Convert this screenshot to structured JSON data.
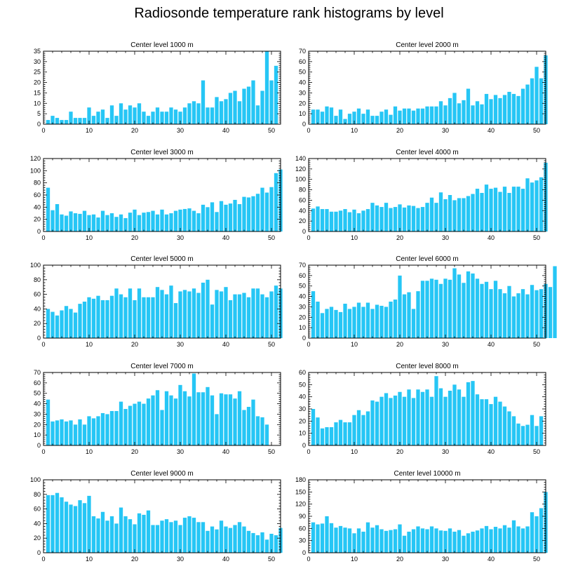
{
  "title": "Radiosonde temperature rank histograms by level",
  "colors": {
    "bar": "#26c6f5",
    "bar_edge": "#ffffff",
    "axis": "#000000"
  },
  "chart_data": [
    {
      "type": "bar",
      "title": "Center level 1000 m",
      "xlim": [
        0,
        52
      ],
      "ylim": [
        0,
        35
      ],
      "xticks": [
        0,
        10,
        20,
        30,
        40,
        50
      ],
      "yticks": [
        0,
        5,
        10,
        15,
        20,
        25,
        30,
        35
      ],
      "values": [
        2,
        4,
        3,
        2,
        2,
        6,
        3,
        3,
        3,
        8,
        4,
        6,
        7,
        3,
        9,
        4,
        10,
        7,
        9,
        8,
        10,
        6,
        4,
        6,
        8,
        6,
        6,
        8,
        7,
        6,
        8,
        10,
        11,
        10,
        21,
        8,
        8,
        13,
        11,
        12,
        15,
        16,
        11,
        17,
        18,
        21,
        9,
        16,
        35,
        21,
        28
      ]
    },
    {
      "type": "bar",
      "title": "Center level 2000 m",
      "xlim": [
        0,
        52
      ],
      "ylim": [
        0,
        70
      ],
      "xticks": [
        0,
        10,
        20,
        30,
        40,
        50
      ],
      "yticks": [
        0,
        10,
        20,
        30,
        40,
        50,
        60,
        70
      ],
      "values": [
        14,
        14,
        12,
        17,
        16,
        8,
        14,
        5,
        10,
        12,
        15,
        10,
        14,
        8,
        8,
        12,
        14,
        9,
        17,
        13,
        15,
        15,
        13,
        15,
        15,
        17,
        17,
        17,
        22,
        18,
        25,
        30,
        20,
        23,
        34,
        18,
        22,
        19,
        29,
        24,
        28,
        25,
        28,
        31,
        29,
        27,
        34,
        38,
        44,
        55,
        44,
        66
      ]
    },
    {
      "type": "bar",
      "title": "Center level 3000 m",
      "xlim": [
        0,
        52
      ],
      "ylim": [
        0,
        120
      ],
      "xticks": [
        0,
        10,
        20,
        30,
        40,
        50
      ],
      "yticks": [
        0,
        20,
        40,
        60,
        80,
        100,
        120
      ],
      "values": [
        72,
        35,
        45,
        28,
        26,
        33,
        30,
        29,
        34,
        27,
        28,
        23,
        34,
        27,
        30,
        24,
        28,
        22,
        31,
        36,
        27,
        31,
        32,
        34,
        28,
        36,
        28,
        30,
        34,
        36,
        37,
        38,
        34,
        30,
        44,
        40,
        48,
        32,
        50,
        44,
        46,
        52,
        45,
        57,
        56,
        58,
        62,
        72,
        64,
        73,
        96,
        102
      ]
    },
    {
      "type": "bar",
      "title": "Center level 4000 m",
      "xlim": [
        0,
        52
      ],
      "ylim": [
        0,
        140
      ],
      "xticks": [
        0,
        10,
        20,
        30,
        40,
        50
      ],
      "yticks": [
        0,
        20,
        40,
        60,
        80,
        100,
        120,
        140
      ],
      "values": [
        44,
        48,
        43,
        43,
        38,
        38,
        40,
        43,
        37,
        42,
        35,
        40,
        43,
        55,
        50,
        47,
        55,
        45,
        47,
        52,
        46,
        50,
        49,
        45,
        47,
        55,
        65,
        55,
        75,
        62,
        70,
        60,
        64,
        64,
        68,
        72,
        82,
        74,
        90,
        82,
        84,
        76,
        86,
        74,
        86,
        86,
        82,
        102,
        94,
        98,
        104,
        132
      ]
    },
    {
      "type": "bar",
      "title": "Center level 5000 m",
      "xlim": [
        0,
        52
      ],
      "ylim": [
        0,
        100
      ],
      "xticks": [
        0,
        10,
        20,
        30,
        40,
        50
      ],
      "yticks": [
        0,
        20,
        40,
        60,
        80,
        100
      ],
      "values": [
        40,
        36,
        31,
        38,
        44,
        40,
        35,
        47,
        50,
        56,
        54,
        58,
        52,
        52,
        58,
        68,
        60,
        56,
        68,
        52,
        68,
        56,
        56,
        56,
        70,
        66,
        60,
        72,
        48,
        64,
        66,
        64,
        68,
        62,
        76,
        80,
        46,
        66,
        64,
        70,
        52,
        60,
        60,
        62,
        56,
        68,
        68,
        60,
        56,
        64,
        72,
        68
      ]
    },
    {
      "type": "bar",
      "title": "Center level 6000 m",
      "xlim": [
        0,
        52
      ],
      "ylim": [
        0,
        70
      ],
      "xticks": [
        0,
        10,
        20,
        30,
        40,
        50
      ],
      "yticks": [
        0,
        10,
        20,
        30,
        40,
        50,
        60,
        70
      ],
      "values": [
        45,
        35,
        24,
        28,
        30,
        27,
        25,
        33,
        28,
        30,
        34,
        30,
        34,
        28,
        32,
        31,
        30,
        35,
        37,
        60,
        42,
        44,
        28,
        45,
        55,
        55,
        57,
        56,
        52,
        57,
        56,
        67,
        61,
        53,
        64,
        62,
        57,
        52,
        54,
        47,
        55,
        47,
        43,
        50,
        40,
        43,
        47,
        42,
        51,
        46,
        47,
        52,
        49,
        69
      ]
    },
    {
      "type": "bar",
      "title": "Center level 7000 m",
      "xlim": [
        0,
        52
      ],
      "ylim": [
        0,
        70
      ],
      "xticks": [
        0,
        10,
        20,
        30,
        40,
        50
      ],
      "yticks": [
        0,
        10,
        20,
        30,
        40,
        50,
        60,
        70
      ],
      "values": [
        44,
        23,
        24,
        25,
        23,
        24,
        20,
        25,
        20,
        28,
        26,
        28,
        31,
        30,
        33,
        33,
        42,
        35,
        38,
        40,
        42,
        40,
        45,
        48,
        53,
        34,
        52,
        48,
        45,
        58,
        52,
        47,
        69,
        51,
        51,
        56,
        48,
        30,
        50,
        49,
        49,
        45,
        52,
        34,
        37,
        44,
        28,
        27,
        20
      ]
    },
    {
      "type": "bar",
      "title": "Center level 8000 m",
      "xlim": [
        0,
        52
      ],
      "ylim": [
        0,
        60
      ],
      "xticks": [
        0,
        10,
        20,
        30,
        40,
        50
      ],
      "yticks": [
        0,
        10,
        20,
        30,
        40,
        50,
        60
      ],
      "values": [
        30,
        23,
        14,
        15,
        15,
        19,
        21,
        19,
        19,
        25,
        29,
        25,
        28,
        37,
        36,
        40,
        43,
        39,
        41,
        44,
        40,
        46,
        39,
        46,
        44,
        46,
        40,
        57,
        47,
        40,
        45,
        50,
        46,
        40,
        52,
        53,
        42,
        38,
        38,
        34,
        40,
        36,
        32,
        28,
        24,
        18,
        16,
        17,
        25,
        16,
        24
      ]
    },
    {
      "type": "bar",
      "title": "Center level 9000 m",
      "xlim": [
        0,
        52
      ],
      "ylim": [
        0,
        100
      ],
      "xticks": [
        0,
        10,
        20,
        30,
        40,
        50
      ],
      "yticks": [
        0,
        20,
        40,
        60,
        80,
        100
      ],
      "values": [
        79,
        79,
        82,
        76,
        70,
        66,
        64,
        72,
        68,
        78,
        50,
        47,
        56,
        44,
        50,
        40,
        62,
        50,
        46,
        39,
        54,
        52,
        58,
        38,
        38,
        44,
        46,
        42,
        44,
        38,
        48,
        50,
        48,
        42,
        42,
        30,
        36,
        32,
        44,
        36,
        34,
        38,
        42,
        36,
        30,
        27,
        24,
        28,
        18,
        26,
        24,
        34
      ]
    },
    {
      "type": "bar",
      "title": "Center level 10000 m",
      "xlim": [
        0,
        52
      ],
      "ylim": [
        0,
        180
      ],
      "xticks": [
        0,
        10,
        20,
        30,
        40,
        50
      ],
      "yticks": [
        0,
        30,
        60,
        90,
        120,
        150,
        180
      ],
      "values": [
        75,
        70,
        72,
        90,
        73,
        62,
        66,
        62,
        60,
        48,
        60,
        52,
        75,
        62,
        68,
        58,
        54,
        56,
        58,
        70,
        42,
        52,
        58,
        65,
        60,
        58,
        65,
        60,
        55,
        54,
        60,
        52,
        56,
        42,
        48,
        52,
        55,
        60,
        66,
        58,
        64,
        60,
        68,
        62,
        80,
        65,
        60,
        65,
        100,
        90,
        110,
        150
      ]
    }
  ]
}
